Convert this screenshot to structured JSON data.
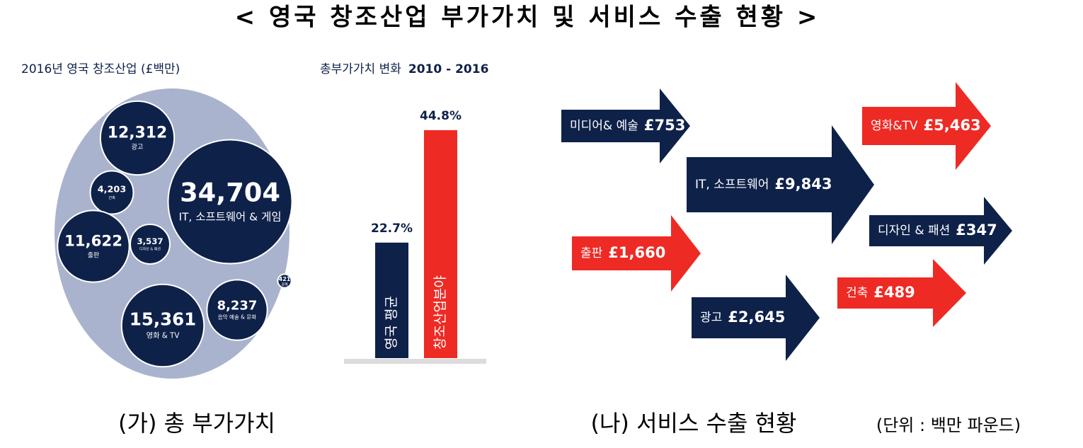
{
  "title": "< 영국 창조산업 부가가치 및 서비스 수출 현황 >",
  "chart_data": [
    {
      "type": "bubble",
      "title": "2016년 영국 창조산업 (£백만)",
      "categories": [
        "IT, 소프트웨어 & 게임",
        "광고",
        "건축",
        "출판",
        "디자인 & 패션",
        "영화 & TV",
        "음악 예술 & 문화",
        "공예"
      ],
      "values": [
        34704,
        12312,
        4203,
        11622,
        3537,
        15361,
        8237,
        421
      ],
      "value_labels": [
        "34,704",
        "12,312",
        "4,203",
        "11,622",
        "3,537",
        "15,361",
        "8,237",
        "421"
      ],
      "color": "#0e2149",
      "background_color": "#a9b3cd"
    },
    {
      "type": "bar",
      "title": "총부가가치 변화",
      "subtitle": "2010 - 2016",
      "categories": [
        "영국 평균",
        "창조산업분야"
      ],
      "values": [
        22.7,
        44.8
      ],
      "value_labels": [
        "22.7%",
        "44.8%"
      ],
      "colors": [
        "#0e2149",
        "#ee2a24"
      ]
    },
    {
      "type": "arrow",
      "categories": [
        "미디어& 예술",
        "IT, 소프트웨어",
        "광고",
        "출판",
        "영화&TV",
        "디자인 & 패션",
        "건축"
      ],
      "values": [
        753,
        9843,
        2645,
        1660,
        5463,
        347,
        489
      ],
      "value_labels": [
        "£753",
        "£9,843",
        "£2,645",
        "£1,660",
        "£5,463",
        "£347",
        "£489"
      ],
      "colors": [
        "#0e2149",
        "#0e2149",
        "#0e2149",
        "#ee2a24",
        "#ee2a24",
        "#0e2149",
        "#ee2a24"
      ]
    }
  ],
  "captions": {
    "left": "(가) 총 부가가치",
    "right": "(나) 서비스 수출 현황",
    "unit": "(단위 : 백만 파운드)"
  }
}
